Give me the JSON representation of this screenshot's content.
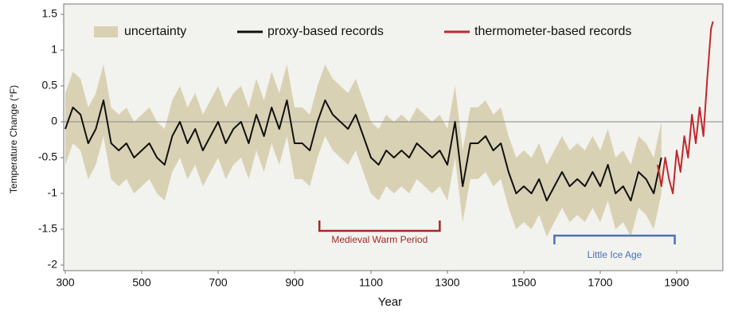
{
  "chart_data": {
    "type": "line",
    "ylabel": "Temperature Change (°F)",
    "xlabel": "Year",
    "xlim": [
      300,
      2020
    ],
    "ylim": [
      -2,
      1.5
    ],
    "xticks": [
      300,
      500,
      700,
      900,
      1100,
      1300,
      1500,
      1700,
      1900
    ],
    "yticks": [
      1.5,
      1,
      0.5,
      0,
      -0.5,
      -1,
      -1.5,
      -2
    ],
    "reference_line": 0,
    "legend": "top",
    "series": [
      {
        "name": "uncertainty",
        "type": "band",
        "color": "#d9d1b3",
        "x": [
          300,
          320,
          340,
          360,
          380,
          400,
          420,
          440,
          460,
          480,
          500,
          520,
          540,
          560,
          580,
          600,
          620,
          640,
          660,
          680,
          700,
          720,
          740,
          760,
          780,
          800,
          820,
          840,
          860,
          880,
          900,
          920,
          940,
          960,
          980,
          1000,
          1020,
          1040,
          1060,
          1080,
          1100,
          1120,
          1140,
          1160,
          1180,
          1200,
          1220,
          1240,
          1260,
          1280,
          1300,
          1320,
          1340,
          1360,
          1380,
          1400,
          1420,
          1440,
          1460,
          1480,
          1500,
          1520,
          1540,
          1560,
          1580,
          1600,
          1620,
          1640,
          1660,
          1680,
          1700,
          1720,
          1740,
          1760,
          1780,
          1800,
          1820,
          1840,
          1860
        ],
        "upper": [
          0.4,
          0.7,
          0.6,
          0.2,
          0.4,
          0.8,
          0.2,
          0.1,
          0.2,
          0,
          0.1,
          0.2,
          0,
          -0.1,
          0.3,
          0.5,
          0.2,
          0.4,
          0.1,
          0.3,
          0.5,
          0.2,
          0.4,
          0.5,
          0.2,
          0.6,
          0.3,
          0.7,
          0.4,
          0.8,
          0.2,
          0.2,
          0.1,
          0.5,
          0.8,
          0.6,
          0.5,
          0.4,
          0.6,
          0.3,
          0,
          -0.1,
          0.1,
          0,
          0.1,
          0,
          0.2,
          0.1,
          0,
          0.1,
          -0.1,
          0.5,
          -0.4,
          0.2,
          0.2,
          0.3,
          0.1,
          0.2,
          -0.2,
          -0.5,
          -0.4,
          -0.5,
          -0.3,
          -0.6,
          -0.4,
          -0.2,
          -0.4,
          -0.3,
          -0.4,
          -0.2,
          -0.4,
          -0.1,
          -0.5,
          -0.4,
          -0.6,
          -0.2,
          -0.3,
          -0.5,
          0
        ],
        "lower": [
          -0.6,
          -0.3,
          -0.4,
          -0.8,
          -0.6,
          -0.2,
          -0.8,
          -0.9,
          -0.8,
          -1,
          -0.9,
          -0.8,
          -1,
          -1.1,
          -0.7,
          -0.5,
          -0.8,
          -0.6,
          -0.9,
          -0.7,
          -0.5,
          -0.8,
          -0.6,
          -0.5,
          -0.8,
          -0.4,
          -0.7,
          -0.3,
          -0.6,
          -0.2,
          -0.8,
          -0.8,
          -0.9,
          -0.5,
          -0.2,
          -0.4,
          -0.5,
          -0.6,
          -0.4,
          -0.7,
          -1,
          -1.1,
          -0.9,
          -1,
          -0.9,
          -1,
          -0.8,
          -0.9,
          -1,
          -0.9,
          -1.1,
          -0.5,
          -1.4,
          -0.8,
          -0.8,
          -0.7,
          -0.9,
          -0.8,
          -1.2,
          -1.5,
          -1.4,
          -1.5,
          -1.3,
          -1.6,
          -1.4,
          -1.2,
          -1.4,
          -1.3,
          -1.4,
          -1.2,
          -1.4,
          -1.1,
          -1.5,
          -1.4,
          -1.6,
          -1.2,
          -1.3,
          -1.5,
          -1
        ]
      },
      {
        "name": "proxy-based records",
        "color": "#111111",
        "x": [
          300,
          320,
          340,
          360,
          380,
          400,
          420,
          440,
          460,
          480,
          500,
          520,
          540,
          560,
          580,
          600,
          620,
          640,
          660,
          680,
          700,
          720,
          740,
          760,
          780,
          800,
          820,
          840,
          860,
          880,
          900,
          920,
          940,
          960,
          980,
          1000,
          1020,
          1040,
          1060,
          1080,
          1100,
          1120,
          1140,
          1160,
          1180,
          1200,
          1220,
          1240,
          1260,
          1280,
          1300,
          1320,
          1340,
          1360,
          1380,
          1400,
          1420,
          1440,
          1460,
          1480,
          1500,
          1520,
          1540,
          1560,
          1580,
          1600,
          1620,
          1640,
          1660,
          1680,
          1700,
          1720,
          1740,
          1760,
          1780,
          1800,
          1820,
          1840,
          1860
        ],
        "values": [
          -0.1,
          0.2,
          0.1,
          -0.3,
          -0.1,
          0.3,
          -0.3,
          -0.4,
          -0.3,
          -0.5,
          -0.4,
          -0.3,
          -0.5,
          -0.6,
          -0.2,
          0,
          -0.3,
          -0.1,
          -0.4,
          -0.2,
          0,
          -0.3,
          -0.1,
          0,
          -0.3,
          0.1,
          -0.2,
          0.2,
          -0.1,
          0.3,
          -0.3,
          -0.3,
          -0.4,
          0,
          0.3,
          0.1,
          0,
          -0.1,
          0.1,
          -0.2,
          -0.5,
          -0.6,
          -0.4,
          -0.5,
          -0.4,
          -0.5,
          -0.3,
          -0.4,
          -0.5,
          -0.4,
          -0.6,
          0,
          -0.9,
          -0.3,
          -0.3,
          -0.2,
          -0.4,
          -0.3,
          -0.7,
          -1,
          -0.9,
          -1,
          -0.8,
          -1.1,
          -0.9,
          -0.7,
          -0.9,
          -0.8,
          -0.9,
          -0.7,
          -0.9,
          -0.6,
          -1,
          -0.9,
          -1.1,
          -0.7,
          -0.8,
          -1,
          -0.5
        ]
      },
      {
        "name": "thermometer-based records",
        "color": "#c0282d",
        "x": [
          1850,
          1860,
          1870,
          1880,
          1890,
          1900,
          1910,
          1920,
          1930,
          1940,
          1950,
          1960,
          1970,
          1980,
          1990,
          1995
        ],
        "values": [
          -0.6,
          -0.9,
          -0.5,
          -0.8,
          -1,
          -0.4,
          -0.7,
          -0.2,
          -0.5,
          0.1,
          -0.3,
          0.2,
          -0.2,
          0.6,
          1.3,
          1.4
        ]
      }
    ],
    "annotations": [
      {
        "text": "Medieval Warm Period",
        "start": 965,
        "end": 1280,
        "color": "#a0282a"
      },
      {
        "text": "Little Ice Age",
        "start": 1580,
        "end": 1895,
        "color": "#4a72b8"
      }
    ]
  }
}
